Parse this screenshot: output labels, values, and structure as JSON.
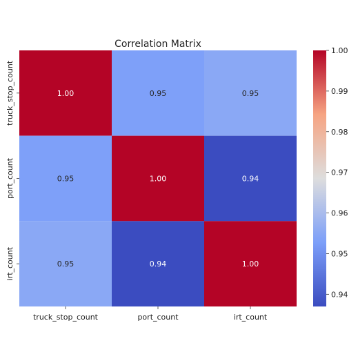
{
  "chart_data": {
    "type": "heatmap",
    "title": "Correlation Matrix",
    "xlabel": "",
    "ylabel": "",
    "x_categories": [
      "truck_stop_count",
      "port_count",
      "irt_count"
    ],
    "y_categories": [
      "truck_stop_count",
      "port_count",
      "irt_count"
    ],
    "values": [
      [
        1.0,
        0.953,
        0.955
      ],
      [
        0.953,
        1.0,
        0.937
      ],
      [
        0.955,
        0.937,
        1.0
      ]
    ],
    "annotations": [
      [
        "1.00",
        "0.95",
        "0.95"
      ],
      [
        "0.95",
        "1.00",
        "0.94"
      ],
      [
        "0.95",
        "0.94",
        "1.00"
      ]
    ],
    "colormap": "coolwarm",
    "color_range": [
      0.937,
      1.0
    ],
    "colorbar_ticks": [
      0.94,
      0.95,
      0.96,
      0.97,
      0.98,
      0.99,
      1.0
    ],
    "colorbar_tick_labels": [
      "0.94",
      "0.95",
      "0.96",
      "0.97",
      "0.98",
      "0.99",
      "1.00"
    ],
    "colorbar_placement": "right",
    "grid": false
  }
}
